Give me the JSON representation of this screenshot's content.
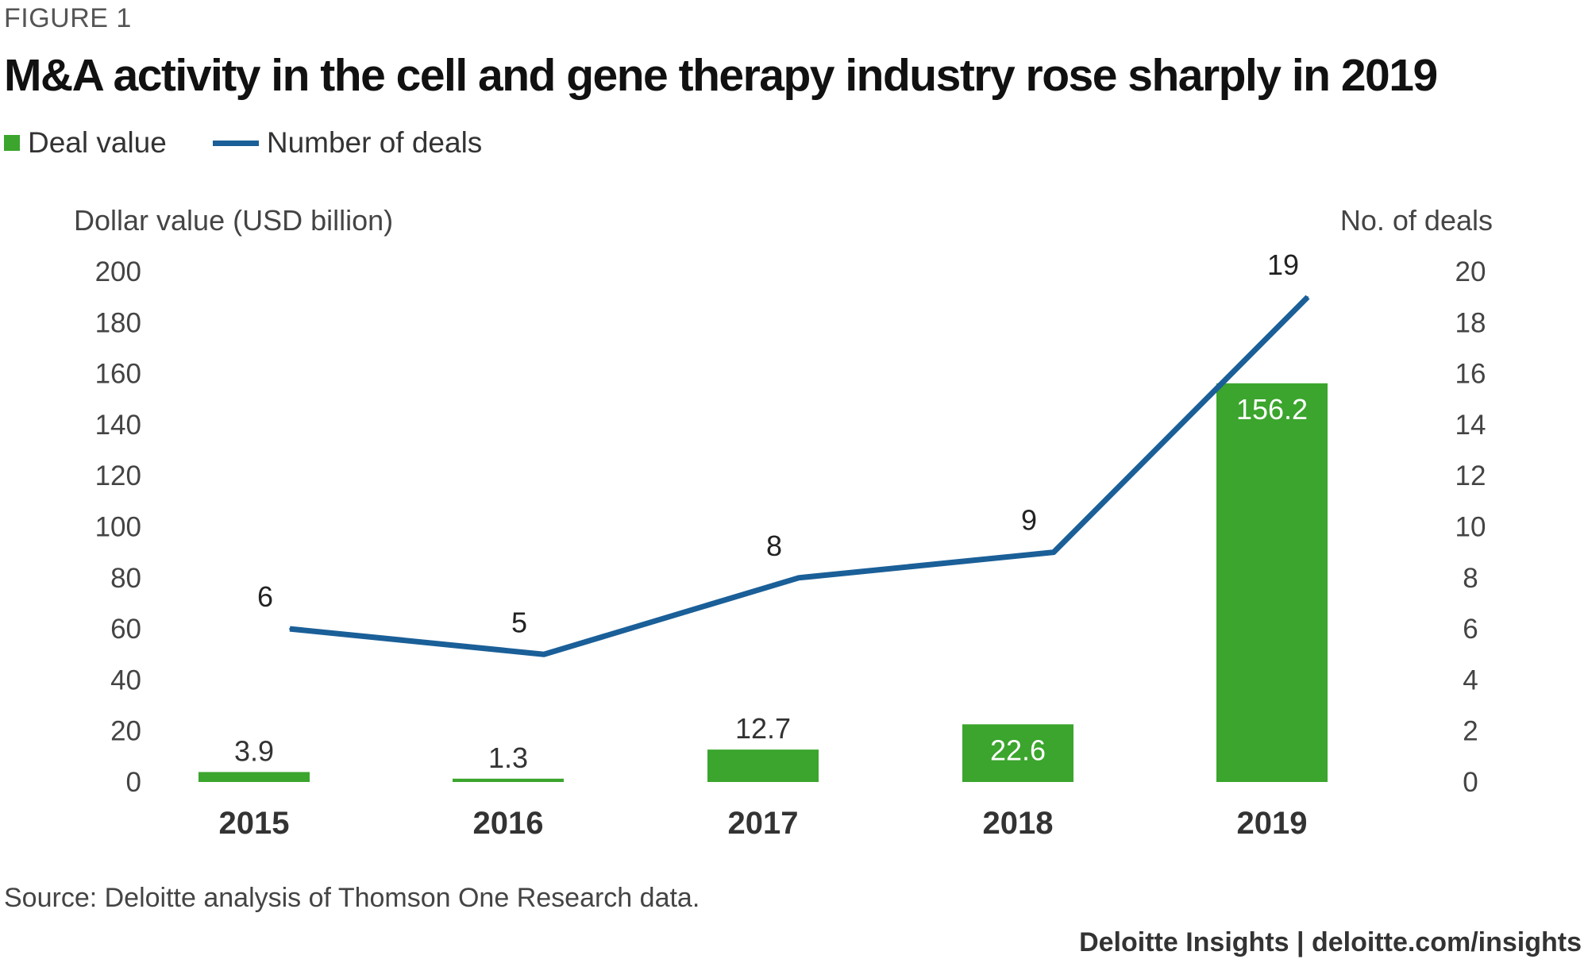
{
  "header": {
    "figure_label": "FIGURE 1",
    "title": "M&A activity in the cell and gene therapy industry rose sharply in 2019"
  },
  "legend": {
    "bar_label": "Deal value",
    "line_label": "Number of deals"
  },
  "footer": {
    "source": "Source: Deloitte analysis of Thomson One Research data.",
    "credit": "Deloitte Insights | deloitte.com/insights"
  },
  "colors": {
    "bar": "#3ba52d",
    "line": "#1a5f98",
    "text": "#333333"
  },
  "chart_data": {
    "type": "bar",
    "title": "M&A activity in the cell and gene therapy industry rose sharply in 2019",
    "categories": [
      "2015",
      "2016",
      "2017",
      "2018",
      "2019"
    ],
    "series": [
      {
        "name": "Deal value",
        "type": "bar",
        "axis": "left",
        "values": [
          3.9,
          1.3,
          12.7,
          22.6,
          156.2
        ],
        "labels": [
          "3.9",
          "1.3",
          "12.7",
          "22.6",
          "156.2"
        ]
      },
      {
        "name": "Number of deals",
        "type": "line",
        "axis": "right",
        "values": [
          6,
          5,
          8,
          9,
          19
        ],
        "labels": [
          "6",
          "5",
          "8",
          "9",
          "19"
        ]
      }
    ],
    "ylabel": "Dollar value (USD billion)",
    "ylim": [
      0,
      200
    ],
    "yticks": [
      "0",
      "20",
      "40",
      "60",
      "80",
      "100",
      "120",
      "140",
      "160",
      "180",
      "200"
    ],
    "y2label": "No. of deals",
    "y2lim": [
      0,
      20
    ],
    "y2ticks": [
      "0",
      "2",
      "4",
      "6",
      "8",
      "10",
      "12",
      "14",
      "16",
      "18",
      "20"
    ],
    "grid": false,
    "legend_position": "top-left"
  }
}
